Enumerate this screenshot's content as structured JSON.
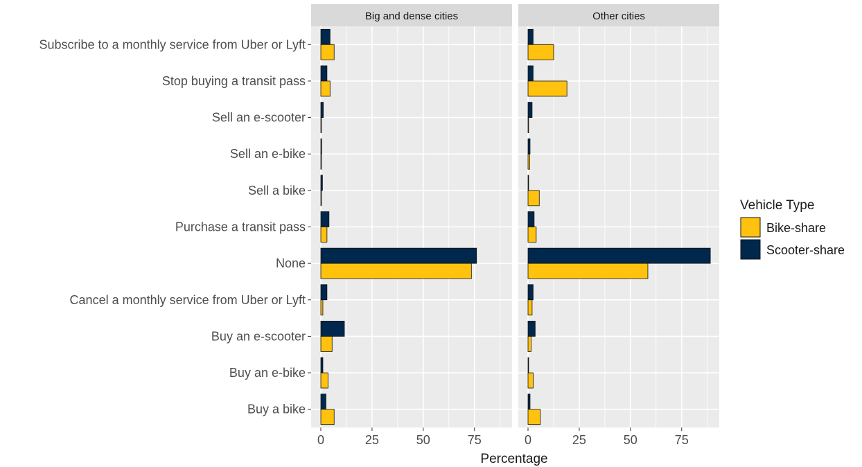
{
  "chart_data": {
    "type": "bar",
    "orientation": "horizontal",
    "xlabel": "Percentage",
    "xlim": [
      0,
      92
    ],
    "xticks": [
      0,
      25,
      50,
      75
    ],
    "grid": true,
    "legend": {
      "title": "Vehicle Type",
      "position": "right",
      "entries": [
        "Bike-share",
        "Scooter-share"
      ]
    },
    "colors": {
      "Bike-share": "#FFC20E",
      "Scooter-share": "#00274C",
      "panel_background": "#EBEBEB",
      "strip_background": "#D9D9D9"
    },
    "categories": [
      "Subscribe to a monthly service from Uber or Lyft",
      "Stop buying a transit pass",
      "Sell an e-scooter",
      "Sell an e-bike",
      "Sell a bike",
      "Purchase a transit pass",
      "None",
      "Cancel a monthly service from Uber or Lyft",
      "Buy an e-scooter",
      "Buy an e-bike",
      "Buy a bike"
    ],
    "facets": [
      {
        "name": "Big and dense cities",
        "series": [
          {
            "name": "Bike-share",
            "values": [
              6.5,
              4.5,
              0.3,
              0.3,
              0.3,
              3.0,
              73.5,
              1.0,
              5.5,
              3.5,
              6.5
            ]
          },
          {
            "name": "Scooter-share",
            "values": [
              4.5,
              3.0,
              1.2,
              0.4,
              0.8,
              4.0,
              76.0,
              3.0,
              11.5,
              1.0,
              2.5
            ]
          }
        ]
      },
      {
        "name": "Other cities",
        "series": [
          {
            "name": "Bike-share",
            "values": [
              12.5,
              19.0,
              0.3,
              0.8,
              5.5,
              4.0,
              58.5,
              2.0,
              1.5,
              2.5,
              6.0
            ]
          },
          {
            "name": "Scooter-share",
            "values": [
              2.5,
              2.5,
              2.0,
              1.0,
              0.3,
              3.0,
              89.0,
              2.5,
              3.5,
              0.3,
              1.0
            ]
          }
        ]
      }
    ]
  }
}
